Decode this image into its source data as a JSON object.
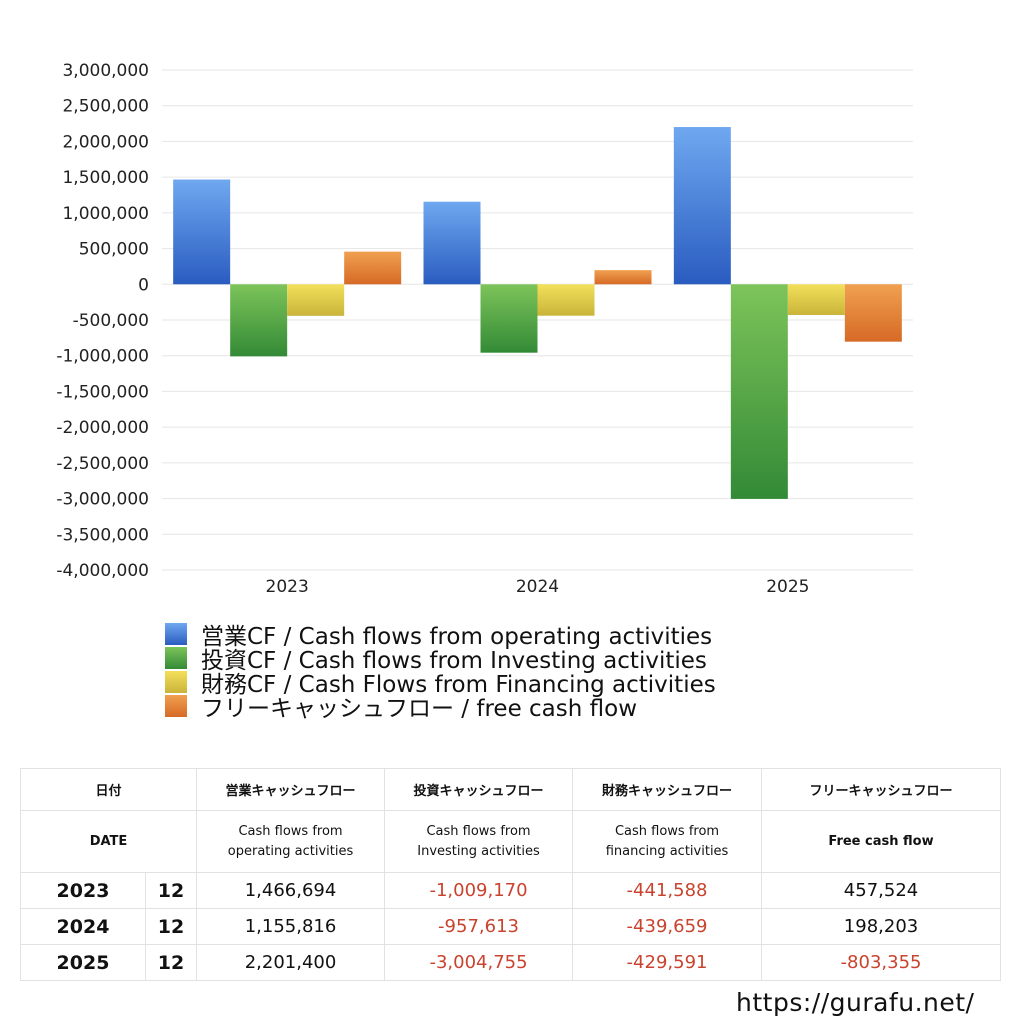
{
  "chart_data": {
    "type": "bar",
    "categories": [
      "2023",
      "2024",
      "2025"
    ],
    "series": [
      {
        "name": "営業CF / Cash flows from operating activities",
        "values": [
          1466694,
          1155816,
          2201400
        ],
        "color_top": "#6fa8f0",
        "color_bottom": "#2a5cc0"
      },
      {
        "name": "投資CF / Cash flows from Investing activities",
        "values": [
          -1009170,
          -957613,
          -3004755
        ],
        "color_top": "#7dc45a",
        "color_bottom": "#338a36"
      },
      {
        "name": "財務CF / Cash Flows from Financing activities",
        "values": [
          -441588,
          -439659,
          -429591
        ],
        "color_top": "#f3e05a",
        "color_bottom": "#c9b43a"
      },
      {
        "name": "フリーキャッシュフロー / free cash flow",
        "values": [
          457524,
          198203,
          -803355
        ],
        "color_top": "#f0a050",
        "color_bottom": "#d66a26"
      }
    ],
    "ylim": [
      -4000000,
      3000000
    ],
    "yticks": [
      "3,000,000",
      "2,500,000",
      "2,000,000",
      "1,500,000",
      "1,000,000",
      "500,000",
      "0",
      "-500,000",
      "-1,000,000",
      "-1,500,000",
      "-2,000,000",
      "-2,500,000",
      "-3,000,000",
      "-3,500,000",
      "-4,000,000"
    ],
    "grid": true,
    "legend_position": "bottom-left"
  },
  "table": {
    "header_jp": {
      "date": "日付",
      "op": "営業キャッシュフロー",
      "inv": "投資キャッシュフロー",
      "fin": "財務キャッシュフロー",
      "free": "フリーキャッシュフロー"
    },
    "header_en": {
      "date": "DATE",
      "op_1": "Cash flows from",
      "op_2": "operating activities",
      "inv_1": "Cash flows from",
      "inv_2": "Investing activities",
      "fin_1": "Cash flows from",
      "fin_2": "financing activities",
      "free": "Free cash flow"
    },
    "rows": [
      {
        "year": "2023",
        "month": "12",
        "op": "1,466,694",
        "inv": "-1,009,170",
        "fin": "-441,588",
        "free": "457,524"
      },
      {
        "year": "2024",
        "month": "12",
        "op": "1,155,816",
        "inv": "-957,613",
        "fin": "-439,659",
        "free": "198,203"
      },
      {
        "year": "2025",
        "month": "12",
        "op": "2,201,400",
        "inv": "-3,004,755",
        "fin": "-429,591",
        "free": "-803,355"
      }
    ]
  },
  "footer": {
    "url": "https://gurafu.net/"
  }
}
